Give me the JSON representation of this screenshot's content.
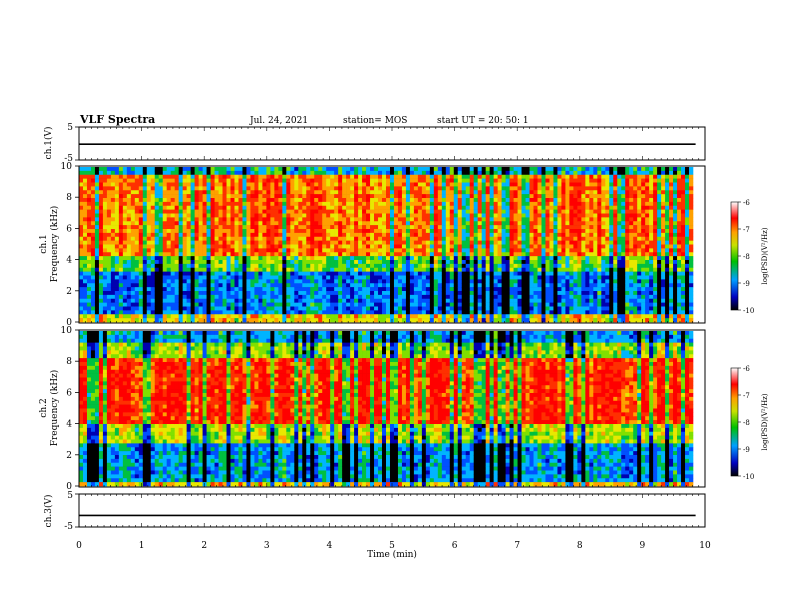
{
  "header": {
    "title": "VLF Spectra",
    "date": "Jul. 24, 2021",
    "station": "station= MOS",
    "start_ut": "start UT =  20: 50: 1"
  },
  "chart_data": [
    {
      "type": "line",
      "panel": "ch1-waveform",
      "ylabel": "ch.1(V)",
      "ylim": [
        -5,
        5
      ],
      "y_ticks": [
        "5",
        "-5"
      ],
      "xlim": [
        0,
        10
      ],
      "series": [
        {
          "values": [
            -0.2,
            -0.2
          ]
        }
      ]
    },
    {
      "type": "heatmap",
      "panel": "ch1-spectrogram",
      "ylabel_channel": "ch.1",
      "ylabel": "Frequency (kHz)",
      "ylim": [
        0,
        10
      ],
      "y_ticks": [
        "0",
        "2",
        "4",
        "6",
        "8",
        "10"
      ],
      "xlim": [
        0,
        10
      ],
      "colorbar": {
        "label": "log(PSD)(V²/Hz)",
        "ticks": [
          "-6",
          "-7",
          "-8",
          "-9",
          "-10"
        ],
        "range": [
          -10,
          -6
        ]
      }
    },
    {
      "type": "heatmap",
      "panel": "ch2-spectrogram",
      "ylabel_channel": "ch.2",
      "ylabel": "Frequency (kHz)",
      "ylim": [
        0,
        10
      ],
      "y_ticks": [
        "0",
        "2",
        "4",
        "6",
        "8",
        "10"
      ],
      "xlim": [
        0,
        10
      ],
      "colorbar": {
        "label": "log(PSD)(V²/Hz)",
        "ticks": [
          "-6",
          "-7",
          "-8",
          "-9",
          "-10"
        ],
        "range": [
          -10,
          -6
        ]
      }
    },
    {
      "type": "line",
      "panel": "ch3-waveform",
      "ylabel": "ch.3(V)",
      "ylim": [
        -5,
        5
      ],
      "y_ticks": [
        "5",
        "-5"
      ],
      "xlim": [
        0,
        10
      ],
      "series": [
        {
          "values": [
            -1.5,
            -1.5
          ]
        }
      ]
    }
  ],
  "x_axis": {
    "label": "Time (min)",
    "ticks": [
      "0",
      "1",
      "2",
      "3",
      "4",
      "5",
      "6",
      "7",
      "8",
      "9",
      "10"
    ]
  },
  "colors": {
    "spectrum_low": "#000000",
    "spectrum_mid": "#00c000",
    "spectrum_high": "#ff0000"
  }
}
